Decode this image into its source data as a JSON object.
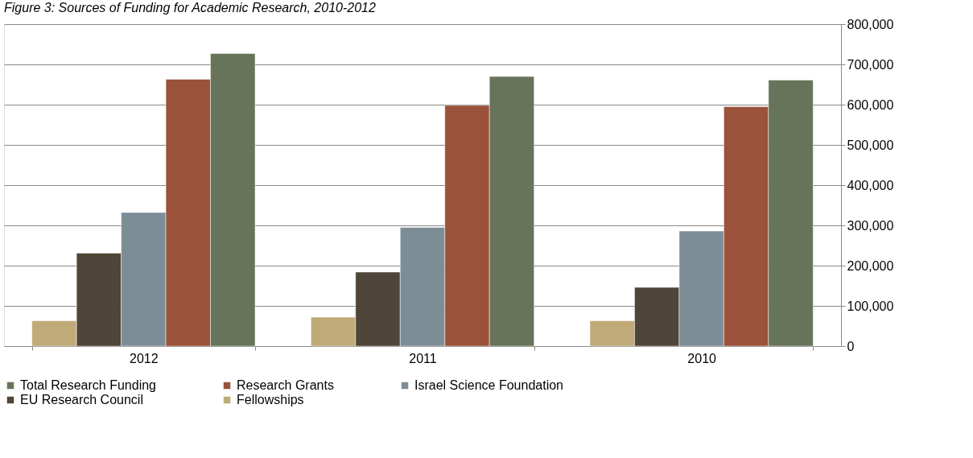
{
  "chart_data": {
    "type": "bar",
    "title": "Figure 3: Sources of Funding for Academic Research, 2010-2012",
    "categories": [
      "2012",
      "2011",
      "2010"
    ],
    "series": [
      {
        "name": "Fellowships",
        "color": "#c0aa78",
        "values": [
          63000,
          72000,
          63000
        ]
      },
      {
        "name": "EU Research Council",
        "color": "#4f4538",
        "values": [
          231000,
          184000,
          146000
        ]
      },
      {
        "name": "Israel Science Foundation",
        "color": "#7d8d95",
        "values": [
          332000,
          295000,
          286000
        ]
      },
      {
        "name": "Research Grants",
        "color": "#9a523a",
        "values": [
          663000,
          598000,
          595000
        ]
      },
      {
        "name": "Total Research Funding",
        "color": "#677459",
        "values": [
          727000,
          670000,
          661000
        ]
      }
    ],
    "ylim": [
      0,
      800000
    ],
    "yticks": [
      {
        "value": 0,
        "label": "0"
      },
      {
        "value": 100000,
        "label": "100,000"
      },
      {
        "value": 200000,
        "label": "200,000"
      },
      {
        "value": 300000,
        "label": "300,000"
      },
      {
        "value": 400000,
        "label": "400,000"
      },
      {
        "value": 500000,
        "label": "500,000"
      },
      {
        "value": 600000,
        "label": "600,000"
      },
      {
        "value": 700000,
        "label": "700,000"
      },
      {
        "value": 800000,
        "label": "800,000"
      }
    ],
    "grid": "y",
    "legend": "bottom"
  }
}
